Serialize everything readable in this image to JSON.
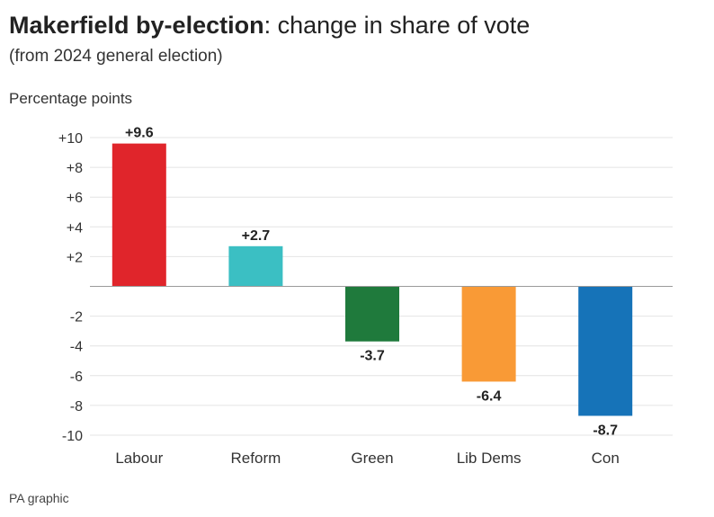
{
  "header": {
    "title_bold": "Makerfield by-election",
    "title_rest": ": change in share of vote",
    "subtitle": "(from 2024 general election)"
  },
  "footer": {
    "source": "PA graphic"
  },
  "chart_data": {
    "type": "bar",
    "title": "Makerfield by-election: change in share of vote",
    "subtitle": "(from 2024 general election)",
    "ylabel": "Percentage points",
    "xlabel": "",
    "categories": [
      "Labour",
      "Reform",
      "Green",
      "Lib Dems",
      "Con"
    ],
    "values": [
      9.6,
      2.7,
      -3.7,
      -6.4,
      -8.7
    ],
    "value_labels": [
      "+9.6",
      "+2.7",
      "-3.7",
      "-6.4",
      "-8.7"
    ],
    "colors": [
      "#e0252b",
      "#3bbfc3",
      "#1f7a3c",
      "#f99a36",
      "#1673b8"
    ],
    "ylim": [
      -10,
      10
    ],
    "yticks": [
      10,
      8,
      6,
      4,
      2,
      -2,
      -4,
      -6,
      -8,
      -10
    ],
    "ytick_labels": [
      "+10",
      "+8",
      "+6",
      "+4",
      "+2",
      "-2",
      "-4",
      "-6",
      "-8",
      "-10"
    ],
    "grid": true,
    "legend": "none"
  }
}
